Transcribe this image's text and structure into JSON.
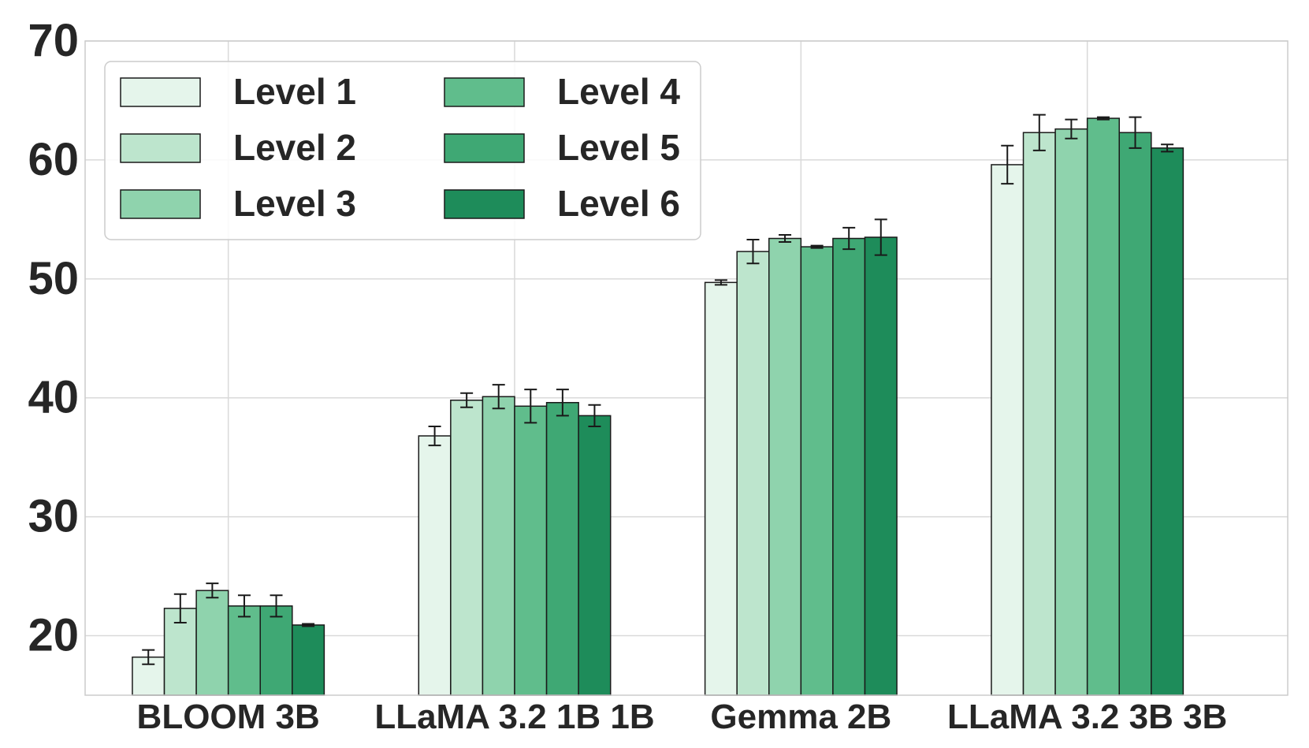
{
  "chart_data": {
    "type": "bar",
    "title": "",
    "xlabel": "",
    "ylabel": "",
    "ylim": [
      15,
      70
    ],
    "yticks": [
      20,
      30,
      40,
      50,
      60,
      70
    ],
    "grid": true,
    "legend_position": "top-left",
    "legend_columns": 2,
    "categories": [
      "BLOOM 3B",
      "LLaMA 3.2 1B 1B",
      "Gemma 2B",
      "LLaMA 3.2 3B 3B"
    ],
    "series": [
      {
        "name": "Level 1",
        "color": "#e5f5eb",
        "values": [
          18.2,
          36.8,
          49.7,
          59.6
        ],
        "errors": [
          0.6,
          0.8,
          0.2,
          1.6
        ]
      },
      {
        "name": "Level 2",
        "color": "#bde5cd",
        "values": [
          22.3,
          39.8,
          52.3,
          62.3
        ],
        "errors": [
          1.2,
          0.6,
          1.0,
          1.5
        ]
      },
      {
        "name": "Level 3",
        "color": "#8fd3ad",
        "values": [
          23.8,
          40.1,
          53.4,
          62.6
        ],
        "errors": [
          0.6,
          1.0,
          0.3,
          0.8
        ]
      },
      {
        "name": "Level 4",
        "color": "#60bd8c",
        "values": [
          22.5,
          39.3,
          52.7,
          63.5
        ],
        "errors": [
          0.9,
          1.4,
          0.1,
          0.1
        ]
      },
      {
        "name": "Level 5",
        "color": "#3fa874",
        "values": [
          22.5,
          39.6,
          53.4,
          62.3
        ],
        "errors": [
          0.9,
          1.1,
          0.9,
          1.3
        ]
      },
      {
        "name": "Level 6",
        "color": "#1e8c5a",
        "values": [
          20.9,
          38.5,
          53.5,
          61.0
        ],
        "errors": [
          0.1,
          0.9,
          1.5,
          0.3
        ]
      }
    ]
  }
}
